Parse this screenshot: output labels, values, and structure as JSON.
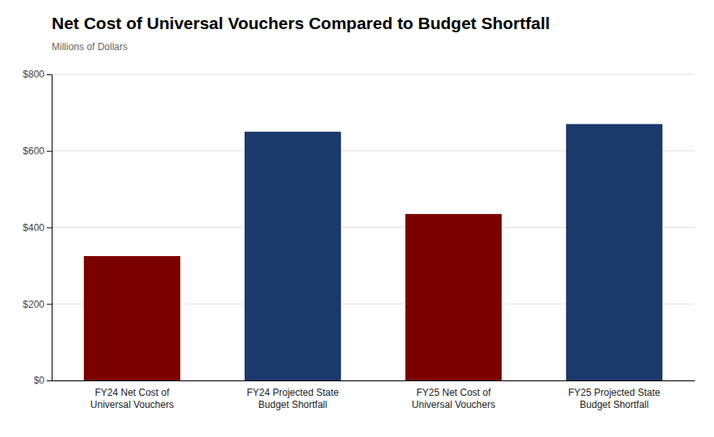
{
  "chart_data": {
    "type": "bar",
    "title": "Net Cost of Universal Vouchers Compared to Budget Shortfall",
    "subtitle": "Millions of Dollars",
    "categories": [
      "FY24 Net Cost of\nUniversal Vouchers",
      "FY24 Projected State\nBudget Shortfall",
      "FY25 Net Cost of\nUniversal Vouchers",
      "FY25 Projected State\nBudget Shortfall"
    ],
    "values": [
      325,
      650,
      435,
      670
    ],
    "colors": [
      "#7B0000",
      "#1B3A6B",
      "#7B0000",
      "#1B3A6B"
    ],
    "ylim": [
      0,
      800
    ],
    "yticks": [
      {
        "value": 0,
        "label": "$0"
      },
      {
        "value": 200,
        "label": "$200"
      },
      {
        "value": 400,
        "label": "$400"
      },
      {
        "value": 600,
        "label": "$600"
      },
      {
        "value": 800,
        "label": "$800"
      }
    ],
    "grid": true
  }
}
